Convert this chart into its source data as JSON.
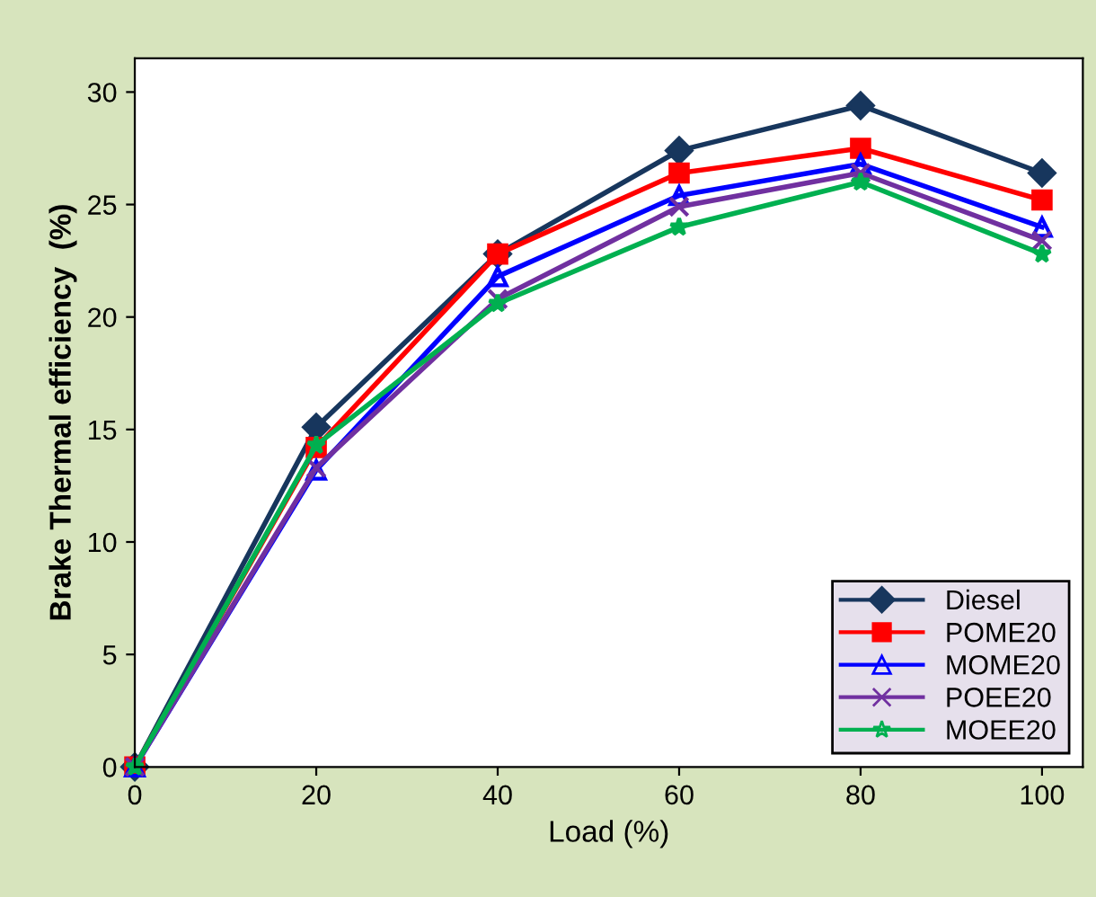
{
  "chart_data": {
    "type": "line",
    "xlabel": "Load (%)",
    "ylabel": "Brake Thermal efficiency  (%)",
    "x": [
      0,
      20,
      40,
      60,
      80,
      100
    ],
    "xlim": [
      0,
      104.5
    ],
    "xticks": [
      0,
      20,
      40,
      60,
      80,
      100
    ],
    "ylim": [
      0,
      31.5
    ],
    "yticks": [
      0,
      5,
      10,
      15,
      20,
      25,
      30
    ],
    "grid": false,
    "legend": "bottom right",
    "series": [
      {
        "name": "Diesel",
        "color": "#17365d",
        "marker": "diamond",
        "values": [
          0,
          15.1,
          22.8,
          27.4,
          29.4,
          26.4
        ]
      },
      {
        "name": "POME20",
        "color": "#ff0000",
        "marker": "square",
        "values": [
          0,
          14.2,
          22.8,
          26.4,
          27.5,
          25.2
        ]
      },
      {
        "name": "MOME20",
        "color": "#0000ff",
        "marker": "triangle",
        "values": [
          0,
          13.2,
          21.8,
          25.4,
          26.8,
          24.0
        ]
      },
      {
        "name": "POEE20",
        "color": "#7030a0",
        "marker": "cross",
        "values": [
          0,
          13.3,
          20.8,
          24.9,
          26.4,
          23.4
        ]
      },
      {
        "name": "MOEE20",
        "color": "#00b050",
        "marker": "star",
        "values": [
          0,
          14.3,
          20.6,
          24.0,
          26.0,
          22.8
        ]
      }
    ]
  }
}
